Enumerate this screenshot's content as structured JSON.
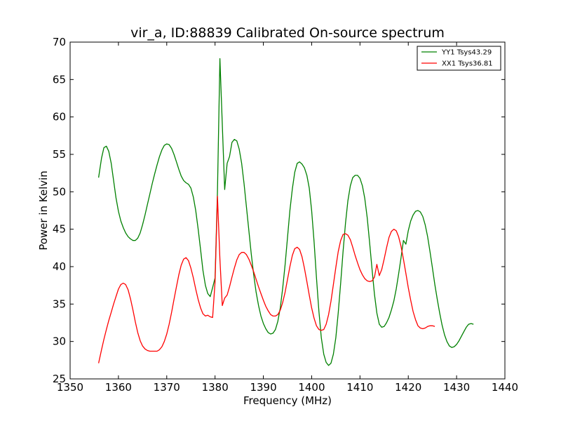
{
  "chart_data": {
    "type": "line",
    "title": "vir_a, ID:88839 Calibrated On-source spectrum",
    "xlabel": "Frequency (MHz)",
    "ylabel": "Power in Kelvin",
    "xlim": [
      1350,
      1440
    ],
    "ylim": [
      25,
      70
    ],
    "xticks": [
      "1350",
      "1360",
      "1370",
      "1380",
      "1390",
      "1400",
      "1410",
      "1420",
      "1430",
      "1440"
    ],
    "yticks": [
      "25",
      "30",
      "35",
      "40",
      "45",
      "50",
      "55",
      "60",
      "65",
      "70"
    ],
    "grid": false,
    "legend_position": "top-right",
    "series": [
      {
        "name": "YY1 Tsys43.29",
        "color": "#008000",
        "points": [
          [
            1355.9,
            51.9
          ],
          [
            1356.5,
            54.5
          ],
          [
            1357.0,
            55.9
          ],
          [
            1357.5,
            56.1
          ],
          [
            1358.0,
            55.4
          ],
          [
            1358.5,
            53.8
          ],
          [
            1359.0,
            51.5
          ],
          [
            1359.5,
            49.2
          ],
          [
            1360.0,
            47.4
          ],
          [
            1360.5,
            46.1
          ],
          [
            1361.0,
            45.2
          ],
          [
            1361.5,
            44.5
          ],
          [
            1362.0,
            44.0
          ],
          [
            1362.5,
            43.7
          ],
          [
            1363.0,
            43.5
          ],
          [
            1363.5,
            43.5
          ],
          [
            1364.0,
            43.8
          ],
          [
            1364.5,
            44.5
          ],
          [
            1365.0,
            45.6
          ],
          [
            1365.5,
            46.9
          ],
          [
            1366.0,
            48.3
          ],
          [
            1366.5,
            49.7
          ],
          [
            1367.0,
            51.1
          ],
          [
            1367.5,
            52.4
          ],
          [
            1368.0,
            53.6
          ],
          [
            1368.5,
            54.7
          ],
          [
            1369.0,
            55.6
          ],
          [
            1369.5,
            56.2
          ],
          [
            1370.0,
            56.4
          ],
          [
            1370.5,
            56.3
          ],
          [
            1371.0,
            55.8
          ],
          [
            1371.5,
            55.0
          ],
          [
            1372.0,
            54.0
          ],
          [
            1372.5,
            53.0
          ],
          [
            1373.0,
            52.1
          ],
          [
            1373.5,
            51.5
          ],
          [
            1374.0,
            51.2
          ],
          [
            1374.5,
            51.0
          ],
          [
            1375.0,
            50.5
          ],
          [
            1375.5,
            49.3
          ],
          [
            1376.0,
            47.5
          ],
          [
            1376.5,
            45.0
          ],
          [
            1377.0,
            42.3
          ],
          [
            1377.5,
            39.5
          ],
          [
            1378.0,
            37.5
          ],
          [
            1378.5,
            36.4
          ],
          [
            1379.0,
            36.0
          ],
          [
            1379.5,
            37.2
          ],
          [
            1380.0,
            38.5
          ],
          [
            1380.5,
            50.0
          ],
          [
            1381.0,
            67.8
          ],
          [
            1381.5,
            59.0
          ],
          [
            1382.0,
            50.3
          ],
          [
            1382.5,
            53.8
          ],
          [
            1383.0,
            54.7
          ],
          [
            1383.5,
            56.6
          ],
          [
            1384.0,
            57.0
          ],
          [
            1384.5,
            56.8
          ],
          [
            1385.0,
            55.7
          ],
          [
            1385.5,
            53.8
          ],
          [
            1386.0,
            51.1
          ],
          [
            1386.5,
            48.0
          ],
          [
            1387.0,
            44.8
          ],
          [
            1387.5,
            41.7
          ],
          [
            1388.0,
            38.9
          ],
          [
            1388.5,
            36.6
          ],
          [
            1389.0,
            34.8
          ],
          [
            1389.5,
            33.4
          ],
          [
            1390.0,
            32.4
          ],
          [
            1390.5,
            31.7
          ],
          [
            1391.0,
            31.2
          ],
          [
            1391.5,
            31.0
          ],
          [
            1392.0,
            31.1
          ],
          [
            1392.5,
            31.6
          ],
          [
            1393.0,
            32.7
          ],
          [
            1393.5,
            34.5
          ],
          [
            1394.0,
            37.1
          ],
          [
            1394.5,
            40.3
          ],
          [
            1395.0,
            43.9
          ],
          [
            1395.5,
            47.5
          ],
          [
            1396.0,
            50.4
          ],
          [
            1396.5,
            52.6
          ],
          [
            1397.0,
            53.8
          ],
          [
            1397.5,
            54.0
          ],
          [
            1398.0,
            53.7
          ],
          [
            1398.5,
            53.2
          ],
          [
            1399.0,
            52.2
          ],
          [
            1399.5,
            50.5
          ],
          [
            1400.0,
            47.5
          ],
          [
            1400.5,
            43.3
          ],
          [
            1401.0,
            38.5
          ],
          [
            1401.5,
            34.0
          ],
          [
            1402.0,
            30.5
          ],
          [
            1402.5,
            28.3
          ],
          [
            1403.0,
            27.2
          ],
          [
            1403.5,
            26.8
          ],
          [
            1404.0,
            27.1
          ],
          [
            1404.5,
            28.3
          ],
          [
            1405.0,
            30.5
          ],
          [
            1405.5,
            33.8
          ],
          [
            1406.0,
            37.8
          ],
          [
            1406.5,
            42.0
          ],
          [
            1407.0,
            45.8
          ],
          [
            1407.5,
            48.8
          ],
          [
            1408.0,
            50.8
          ],
          [
            1408.5,
            51.9
          ],
          [
            1409.0,
            52.2
          ],
          [
            1409.5,
            52.2
          ],
          [
            1410.0,
            51.8
          ],
          [
            1410.5,
            50.8
          ],
          [
            1411.0,
            49.1
          ],
          [
            1411.5,
            46.5
          ],
          [
            1412.0,
            43.2
          ],
          [
            1412.5,
            39.6
          ],
          [
            1413.0,
            36.3
          ],
          [
            1413.5,
            33.8
          ],
          [
            1414.0,
            32.3
          ],
          [
            1414.5,
            31.9
          ],
          [
            1415.0,
            32.0
          ],
          [
            1415.5,
            32.5
          ],
          [
            1416.0,
            33.2
          ],
          [
            1416.5,
            34.2
          ],
          [
            1417.0,
            35.4
          ],
          [
            1417.5,
            37.0
          ],
          [
            1418.0,
            39.0
          ],
          [
            1418.5,
            41.2
          ],
          [
            1419.0,
            43.5
          ],
          [
            1419.5,
            43.0
          ],
          [
            1420.0,
            44.8
          ],
          [
            1420.5,
            46.1
          ],
          [
            1421.0,
            46.9
          ],
          [
            1421.5,
            47.4
          ],
          [
            1422.0,
            47.5
          ],
          [
            1422.5,
            47.3
          ],
          [
            1423.0,
            46.7
          ],
          [
            1423.5,
            45.6
          ],
          [
            1424.0,
            44.0
          ],
          [
            1424.5,
            42.0
          ],
          [
            1425.0,
            39.8
          ],
          [
            1425.5,
            37.6
          ],
          [
            1426.0,
            35.6
          ],
          [
            1426.5,
            33.8
          ],
          [
            1427.0,
            32.2
          ],
          [
            1427.5,
            30.9
          ],
          [
            1428.0,
            30.0
          ],
          [
            1428.5,
            29.4
          ],
          [
            1429.0,
            29.2
          ],
          [
            1429.5,
            29.3
          ],
          [
            1430.0,
            29.6
          ],
          [
            1430.5,
            30.1
          ],
          [
            1431.0,
            30.7
          ],
          [
            1431.5,
            31.3
          ],
          [
            1432.0,
            31.9
          ],
          [
            1432.5,
            32.3
          ],
          [
            1433.0,
            32.4
          ],
          [
            1433.5,
            32.3
          ]
        ]
      },
      {
        "name": "XX1 Tsys36.81",
        "color": "#ff0000",
        "points": [
          [
            1355.9,
            27.1
          ],
          [
            1356.5,
            28.9
          ],
          [
            1357.0,
            30.3
          ],
          [
            1357.5,
            31.6
          ],
          [
            1358.0,
            32.8
          ],
          [
            1358.5,
            33.9
          ],
          [
            1359.0,
            35.0
          ],
          [
            1359.5,
            36.0
          ],
          [
            1360.0,
            37.0
          ],
          [
            1360.5,
            37.6
          ],
          [
            1361.0,
            37.8
          ],
          [
            1361.5,
            37.6
          ],
          [
            1362.0,
            36.9
          ],
          [
            1362.5,
            35.7
          ],
          [
            1363.0,
            34.2
          ],
          [
            1363.5,
            32.6
          ],
          [
            1364.0,
            31.2
          ],
          [
            1364.5,
            30.1
          ],
          [
            1365.0,
            29.4
          ],
          [
            1365.5,
            29.0
          ],
          [
            1366.0,
            28.8
          ],
          [
            1366.5,
            28.7
          ],
          [
            1367.0,
            28.7
          ],
          [
            1367.5,
            28.7
          ],
          [
            1368.0,
            28.7
          ],
          [
            1368.5,
            28.9
          ],
          [
            1369.0,
            29.3
          ],
          [
            1369.5,
            30.0
          ],
          [
            1370.0,
            31.0
          ],
          [
            1370.5,
            32.3
          ],
          [
            1371.0,
            33.9
          ],
          [
            1371.5,
            35.6
          ],
          [
            1372.0,
            37.3
          ],
          [
            1372.5,
            38.9
          ],
          [
            1373.0,
            40.2
          ],
          [
            1373.5,
            41.0
          ],
          [
            1374.0,
            41.2
          ],
          [
            1374.5,
            40.8
          ],
          [
            1375.0,
            39.8
          ],
          [
            1375.5,
            38.5
          ],
          [
            1376.0,
            37.0
          ],
          [
            1376.5,
            35.6
          ],
          [
            1377.0,
            34.5
          ],
          [
            1377.5,
            33.7
          ],
          [
            1378.0,
            33.4
          ],
          [
            1378.5,
            33.5
          ],
          [
            1379.0,
            33.3
          ],
          [
            1379.5,
            33.2
          ],
          [
            1380.0,
            38.0
          ],
          [
            1380.5,
            49.4
          ],
          [
            1381.0,
            41.0
          ],
          [
            1381.5,
            34.8
          ],
          [
            1382.0,
            35.8
          ],
          [
            1382.5,
            36.2
          ],
          [
            1383.0,
            37.3
          ],
          [
            1383.5,
            38.6
          ],
          [
            1384.0,
            39.8
          ],
          [
            1384.5,
            40.9
          ],
          [
            1385.0,
            41.6
          ],
          [
            1385.5,
            41.9
          ],
          [
            1386.0,
            41.9
          ],
          [
            1386.5,
            41.6
          ],
          [
            1387.0,
            41.0
          ],
          [
            1387.5,
            40.2
          ],
          [
            1388.0,
            39.3
          ],
          [
            1388.5,
            38.3
          ],
          [
            1389.0,
            37.3
          ],
          [
            1389.5,
            36.4
          ],
          [
            1390.0,
            35.5
          ],
          [
            1390.5,
            34.7
          ],
          [
            1391.0,
            34.1
          ],
          [
            1391.5,
            33.6
          ],
          [
            1392.0,
            33.4
          ],
          [
            1392.5,
            33.4
          ],
          [
            1393.0,
            33.6
          ],
          [
            1393.5,
            34.2
          ],
          [
            1394.0,
            35.2
          ],
          [
            1394.5,
            36.6
          ],
          [
            1395.0,
            38.3
          ],
          [
            1395.5,
            40.0
          ],
          [
            1396.0,
            41.5
          ],
          [
            1396.5,
            42.4
          ],
          [
            1397.0,
            42.6
          ],
          [
            1397.5,
            42.3
          ],
          [
            1398.0,
            41.3
          ],
          [
            1398.5,
            39.8
          ],
          [
            1399.0,
            38.0
          ],
          [
            1399.5,
            36.2
          ],
          [
            1400.0,
            34.5
          ],
          [
            1400.5,
            33.1
          ],
          [
            1401.0,
            32.1
          ],
          [
            1401.5,
            31.6
          ],
          [
            1402.0,
            31.5
          ],
          [
            1402.5,
            31.6
          ],
          [
            1403.0,
            32.3
          ],
          [
            1403.5,
            33.6
          ],
          [
            1404.0,
            35.4
          ],
          [
            1404.5,
            37.6
          ],
          [
            1405.0,
            39.9
          ],
          [
            1405.5,
            42.0
          ],
          [
            1406.0,
            43.5
          ],
          [
            1406.5,
            44.3
          ],
          [
            1407.0,
            44.4
          ],
          [
            1407.5,
            44.2
          ],
          [
            1408.0,
            43.6
          ],
          [
            1408.5,
            42.6
          ],
          [
            1409.0,
            41.5
          ],
          [
            1409.5,
            40.5
          ],
          [
            1410.0,
            39.6
          ],
          [
            1410.5,
            38.9
          ],
          [
            1411.0,
            38.4
          ],
          [
            1411.5,
            38.1
          ],
          [
            1412.0,
            38.0
          ],
          [
            1412.5,
            38.1
          ],
          [
            1413.0,
            38.6
          ],
          [
            1413.5,
            40.3
          ],
          [
            1414.0,
            38.8
          ],
          [
            1414.5,
            39.6
          ],
          [
            1415.0,
            41.0
          ],
          [
            1415.5,
            42.5
          ],
          [
            1416.0,
            43.9
          ],
          [
            1416.5,
            44.7
          ],
          [
            1417.0,
            45.0
          ],
          [
            1417.5,
            44.8
          ],
          [
            1418.0,
            44.0
          ],
          [
            1418.5,
            42.7
          ],
          [
            1419.0,
            41.0
          ],
          [
            1419.5,
            39.1
          ],
          [
            1420.0,
            37.2
          ],
          [
            1420.5,
            35.5
          ],
          [
            1421.0,
            34.0
          ],
          [
            1421.5,
            32.9
          ],
          [
            1422.0,
            32.1
          ],
          [
            1422.5,
            31.8
          ],
          [
            1423.0,
            31.7
          ],
          [
            1423.5,
            31.8
          ],
          [
            1424.0,
            32.0
          ],
          [
            1424.5,
            32.1
          ],
          [
            1425.0,
            32.1
          ],
          [
            1425.5,
            32.0
          ]
        ]
      }
    ]
  }
}
